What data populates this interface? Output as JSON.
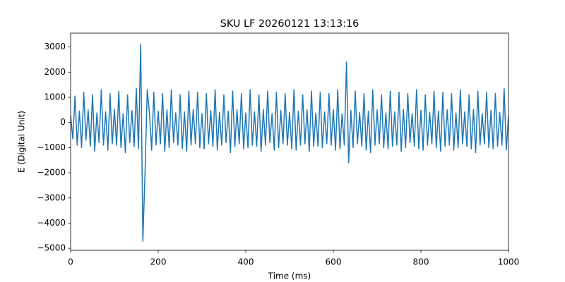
{
  "chart_data": {
    "type": "line",
    "title": "SKU LF 20260121 13:13:16",
    "x_label": "Time (ms)",
    "y_label": "E (Digital Unit)",
    "color": "#1f77b4",
    "xlim": [
      0,
      1000
    ],
    "ylim": [
      -5080,
      3550
    ],
    "xticks": [
      0,
      200,
      400,
      600,
      800,
      1000
    ],
    "yticks": [
      {
        "value": -5000,
        "label": "−5000"
      },
      {
        "value": -4000,
        "label": "−4000"
      },
      {
        "value": -3000,
        "label": "−3000"
      },
      {
        "value": -2000,
        "label": "−2000"
      },
      {
        "value": -1000,
        "label": "−1000"
      },
      0,
      1000,
      2000,
      3000
    ],
    "x": [
      0,
      5,
      10,
      15,
      20,
      25,
      30,
      35,
      40,
      45,
      50,
      55,
      60,
      65,
      70,
      75,
      80,
      85,
      90,
      95,
      100,
      105,
      110,
      115,
      120,
      125,
      130,
      135,
      140,
      145,
      150,
      155,
      160,
      165,
      170,
      175,
      180,
      185,
      190,
      195,
      200,
      205,
      210,
      215,
      220,
      225,
      230,
      235,
      240,
      245,
      250,
      255,
      260,
      265,
      270,
      275,
      280,
      285,
      290,
      295,
      300,
      305,
      310,
      315,
      320,
      325,
      330,
      335,
      340,
      345,
      350,
      355,
      360,
      365,
      370,
      375,
      380,
      385,
      390,
      395,
      400,
      405,
      410,
      415,
      420,
      425,
      430,
      435,
      440,
      445,
      450,
      455,
      460,
      465,
      470,
      475,
      480,
      485,
      490,
      495,
      500,
      505,
      510,
      515,
      520,
      525,
      530,
      535,
      540,
      545,
      550,
      555,
      560,
      565,
      570,
      575,
      580,
      585,
      590,
      595,
      600,
      605,
      610,
      615,
      620,
      625,
      630,
      635,
      640,
      645,
      650,
      655,
      660,
      665,
      670,
      675,
      680,
      685,
      690,
      695,
      700,
      705,
      710,
      715,
      720,
      725,
      730,
      735,
      740,
      745,
      750,
      755,
      760,
      765,
      770,
      775,
      780,
      785,
      790,
      795,
      800,
      805,
      810,
      815,
      820,
      825,
      830,
      835,
      840,
      845,
      850,
      855,
      860,
      865,
      870,
      875,
      880,
      885,
      890,
      895,
      900,
      905,
      910,
      915,
      920,
      925,
      930,
      935,
      940,
      945,
      950,
      955,
      960,
      965,
      970,
      975,
      980,
      985,
      990,
      995,
      1000
    ],
    "values": [
      300,
      -650,
      1050,
      -900,
      450,
      -1000,
      1200,
      -700,
      500,
      -950,
      1100,
      -1150,
      380,
      -800,
      1300,
      -900,
      420,
      -1100,
      1150,
      -850,
      520,
      -900,
      1250,
      -1000,
      350,
      -1200,
      1100,
      -800,
      480,
      -950,
      1350,
      -1050,
      3120,
      -4720,
      -1950,
      1300,
      400,
      -1100,
      1200,
      -900,
      450,
      -850,
      1150,
      -1150,
      500,
      -1000,
      1300,
      -800,
      380,
      -900,
      1100,
      -1050,
      420,
      -1150,
      1250,
      -900,
      520,
      -850,
      1200,
      -1000,
      350,
      -1050,
      1150,
      -850,
      480,
      -950,
      1300,
      -1100,
      400,
      -900,
      1100,
      -800,
      450,
      -1200,
      1250,
      -950,
      500,
      -850,
      1150,
      -1050,
      380,
      -1000,
      1300,
      -900,
      420,
      -950,
      1100,
      -1150,
      520,
      -900,
      1250,
      -800,
      350,
      -1100,
      1200,
      -1000,
      480,
      -850,
      1150,
      -900,
      400,
      -1050,
      1300,
      -1100,
      450,
      -900,
      1100,
      -850,
      500,
      -1150,
      1250,
      -950,
      380,
      -950,
      1200,
      -1000,
      420,
      -850,
      1150,
      -900,
      520,
      -1100,
      1300,
      -1050,
      350,
      -900,
      2400,
      -1600,
      480,
      -1000,
      1250,
      -850,
      400,
      -950,
      1150,
      -1100,
      450,
      -1200,
      1300,
      -900,
      500,
      -850,
      1100,
      -1000,
      380,
      -1050,
      1250,
      -950,
      420,
      -900,
      1200,
      -1150,
      520,
      -1000,
      1150,
      -800,
      350,
      -950,
      1300,
      -1050,
      480,
      -1100,
      1100,
      -900,
      400,
      -850,
      1250,
      -1000,
      450,
      -1150,
      1200,
      -950,
      500,
      -900,
      1150,
      -1100,
      380,
      -1000,
      1300,
      -850,
      420,
      -950,
      1100,
      -1050,
      520,
      -1200,
      1250,
      -900,
      350,
      -850,
      1200,
      -1000,
      480,
      -1050,
      1150,
      -950,
      400,
      -900,
      1350,
      -1100,
      300
    ]
  }
}
